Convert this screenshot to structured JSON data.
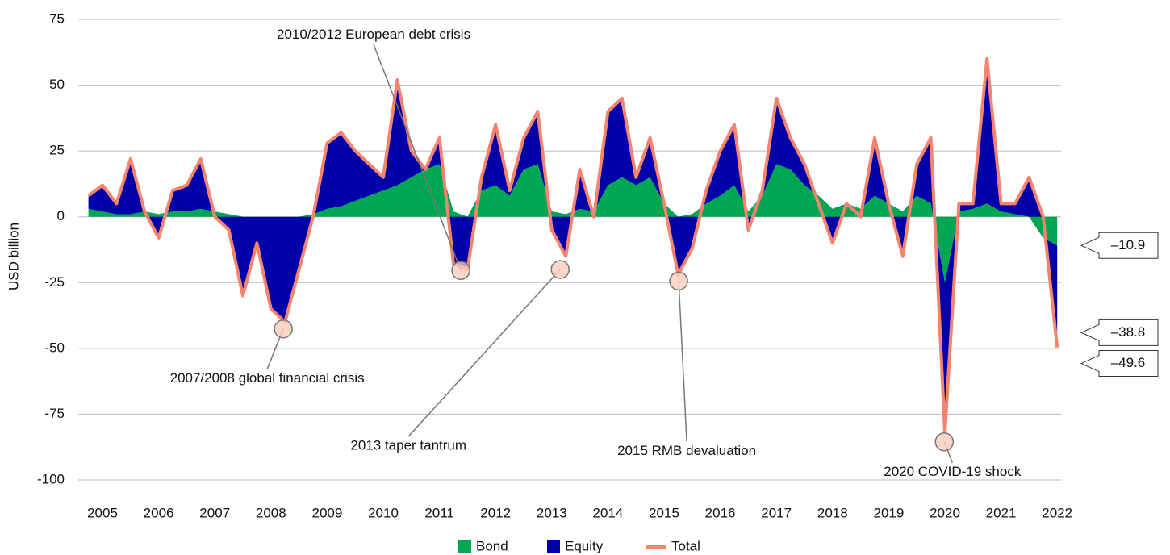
{
  "chart_data": {
    "type": "stacked-area",
    "ylabel": "USD billion",
    "ylim": [
      -100,
      75
    ],
    "yticks": [
      -100,
      -75,
      -50,
      -25,
      0,
      25,
      50,
      75
    ],
    "grid": true,
    "xlim": [
      2004.65,
      2022.1
    ],
    "xticks": [
      2005,
      2006,
      2007,
      2008,
      2009,
      2010,
      2011,
      2012,
      2013,
      2014,
      2015,
      2016,
      2017,
      2018,
      2019,
      2020,
      2021,
      2022
    ],
    "x": [
      2004.75,
      2005,
      2005.25,
      2005.5,
      2005.75,
      2006,
      2006.25,
      2006.5,
      2006.75,
      2007,
      2007.25,
      2007.5,
      2007.75,
      2008,
      2008.25,
      2008.5,
      2008.75,
      2009,
      2009.25,
      2009.5,
      2009.75,
      2010,
      2010.25,
      2010.5,
      2010.75,
      2011,
      2011.25,
      2011.5,
      2011.75,
      2012,
      2012.25,
      2012.5,
      2012.75,
      2013,
      2013.25,
      2013.5,
      2013.75,
      2014,
      2014.25,
      2014.5,
      2014.75,
      2015,
      2015.25,
      2015.5,
      2015.75,
      2016,
      2016.25,
      2016.5,
      2016.75,
      2017,
      2017.25,
      2017.5,
      2017.75,
      2018,
      2018.25,
      2018.5,
      2018.75,
      2019,
      2019.25,
      2019.5,
      2019.75,
      2020,
      2020.25,
      2020.5,
      2020.75,
      2021,
      2021.25,
      2021.5,
      2021.75,
      2022
    ],
    "series": [
      {
        "name": "Bond",
        "color": "#00a651",
        "kind": "area",
        "values": [
          3,
          2,
          1,
          1,
          2,
          1,
          2,
          2,
          3,
          2,
          1,
          0,
          0,
          0,
          0,
          0,
          1,
          3,
          4,
          6,
          8,
          10,
          12,
          15,
          18,
          20,
          2,
          0,
          10,
          12,
          8,
          18,
          20,
          2,
          1,
          3,
          2,
          12,
          15,
          12,
          15,
          5,
          0,
          1,
          5,
          8,
          12,
          2,
          8,
          20,
          18,
          12,
          8,
          3,
          5,
          3,
          8,
          5,
          2,
          8,
          5,
          -25,
          2,
          3,
          5,
          2,
          1,
          0,
          -8,
          -10.9
        ],
        "value_labels": [
          null,
          null,
          null,
          null,
          null,
          null,
          null,
          null,
          null,
          null,
          null,
          null,
          null,
          null,
          null,
          null,
          null,
          null,
          null,
          null,
          null,
          null,
          null,
          null,
          null,
          null,
          null,
          null,
          null,
          null,
          null,
          null,
          null,
          null,
          null,
          null,
          null,
          null,
          null,
          null,
          null,
          null,
          null,
          null,
          null,
          null,
          null,
          null,
          null,
          null,
          null,
          null,
          null,
          null,
          null,
          null,
          null,
          null,
          null,
          null,
          null,
          null,
          null,
          null,
          null,
          null,
          null,
          null,
          null,
          "–10.9"
        ]
      },
      {
        "name": "Equity",
        "color": "#0000a8",
        "kind": "area",
        "values": [
          5,
          10,
          4,
          21,
          0,
          -9,
          8,
          10,
          19,
          -2,
          -6,
          -30,
          -10,
          -35,
          -40,
          -20,
          -1,
          25,
          28,
          19,
          12,
          5,
          40,
          10,
          0,
          10,
          -20,
          -20,
          5,
          23,
          2,
          12,
          20,
          -7,
          -16,
          15,
          -2,
          28,
          30,
          3,
          15,
          0,
          -22,
          -13,
          5,
          17,
          23,
          -7,
          2,
          25,
          12,
          8,
          -3,
          -13,
          0,
          -3,
          22,
          0,
          -17,
          12,
          25,
          -57,
          3,
          2,
          55,
          3,
          4,
          15,
          8,
          -38.8
        ],
        "value_labels": [
          null,
          null,
          null,
          null,
          null,
          null,
          null,
          null,
          null,
          null,
          null,
          null,
          null,
          null,
          null,
          null,
          null,
          null,
          null,
          null,
          null,
          null,
          null,
          null,
          null,
          null,
          null,
          null,
          null,
          null,
          null,
          null,
          null,
          null,
          null,
          null,
          null,
          null,
          null,
          null,
          null,
          null,
          null,
          null,
          null,
          null,
          null,
          null,
          null,
          null,
          null,
          null,
          null,
          null,
          null,
          null,
          null,
          null,
          null,
          null,
          null,
          null,
          null,
          null,
          null,
          null,
          null,
          null,
          null,
          "–38.8"
        ]
      },
      {
        "name": "Total",
        "color": "#f4836f",
        "kind": "line",
        "values": [
          8,
          12,
          5,
          22,
          2,
          -8,
          10,
          12,
          22,
          0,
          -5,
          -30,
          -10,
          -35,
          -40,
          -20,
          0,
          28,
          32,
          25,
          20,
          15,
          52,
          25,
          18,
          30,
          -18,
          -20,
          15,
          35,
          10,
          30,
          40,
          -5,
          -15,
          18,
          0,
          40,
          45,
          15,
          30,
          5,
          -22,
          -12,
          10,
          25,
          35,
          -5,
          10,
          45,
          30,
          20,
          5,
          -10,
          5,
          0,
          30,
          5,
          -15,
          20,
          30,
          -82,
          5,
          5,
          60,
          5,
          5,
          15,
          0,
          -49.6
        ],
        "value_labels": [
          null,
          null,
          null,
          null,
          null,
          null,
          null,
          null,
          null,
          null,
          null,
          null,
          null,
          null,
          null,
          null,
          null,
          null,
          null,
          null,
          null,
          null,
          null,
          null,
          null,
          null,
          null,
          null,
          null,
          null,
          null,
          null,
          null,
          null,
          null,
          null,
          null,
          null,
          null,
          null,
          null,
          null,
          null,
          null,
          null,
          null,
          null,
          null,
          null,
          null,
          null,
          null,
          null,
          null,
          null,
          null,
          null,
          null,
          null,
          null,
          null,
          null,
          null,
          null,
          null,
          null,
          null,
          null,
          null,
          "–49.6"
        ]
      }
    ],
    "annotations": [
      {
        "text": "2007/2008 global financial crisis",
        "x": 2008.22,
        "y": -42.6
      },
      {
        "text": "2010/2012 European debt crisis",
        "x": 2011.38,
        "y": -20.4
      },
      {
        "text": "2013 taper tantrum",
        "x": 2013.15,
        "y": -20
      },
      {
        "text": "2015 RMB devaluation",
        "x": 2015.26,
        "y": -24.4
      },
      {
        "text": "2020 COVID-19 shock",
        "x": 2019.99,
        "y": -85.5
      }
    ]
  }
}
